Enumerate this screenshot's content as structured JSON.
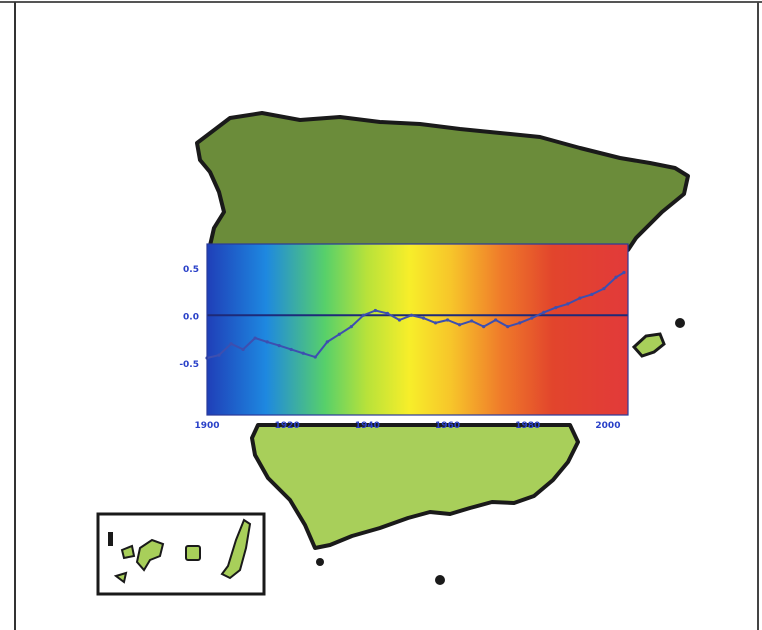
{
  "colors": {
    "north_region": "#6b8c3a",
    "south_region": "#a8cf5a",
    "outline": "#1a1a1a",
    "line_series": "#3d4fb0",
    "zero_line": "#1e2a78",
    "tick_label": "#2940c8",
    "band_warm": "#e23a2a",
    "band_cool": "#1f4fc8"
  },
  "icons": {
    "map": "spain-map-icon",
    "islands_inset": "canary-islands-inset-icon"
  },
  "chart_data": {
    "type": "line",
    "title": "",
    "xlabel": "",
    "ylabel": "",
    "xlim": [
      1900,
      2005
    ],
    "ylim": [
      -1.05,
      0.75
    ],
    "xticks": [
      {
        "value": 1900,
        "label": "1900"
      },
      {
        "value": 1920,
        "label": "1920"
      },
      {
        "value": 1940,
        "label": "1940"
      },
      {
        "value": 1960,
        "label": "1960"
      },
      {
        "value": 1980,
        "label": "1980"
      },
      {
        "value": 2000,
        "label": "2000"
      }
    ],
    "yticks": [
      {
        "value": 0.5,
        "label": "0.5"
      },
      {
        "value": 0.0,
        "label": "0.0"
      },
      {
        "value": -0.5,
        "label": "-0.5"
      }
    ],
    "zero_line": 0.0,
    "background": "horizontal color gradient from blue to red",
    "series": [
      {
        "x": [
          1900,
          1903,
          1906,
          1909,
          1912,
          1915,
          1918,
          1921,
          1924,
          1927,
          1930,
          1933,
          1936,
          1939,
          1942,
          1945,
          1948,
          1951,
          1954,
          1957,
          1960,
          1963,
          1966,
          1969,
          1972,
          1975,
          1978,
          1981,
          1984,
          1987,
          1990,
          1993,
          1996,
          1999,
          2002,
          2004
        ],
        "y": [
          -0.45,
          -0.42,
          -0.3,
          -0.36,
          -0.24,
          -0.28,
          -0.32,
          -0.36,
          -0.4,
          -0.44,
          -0.28,
          -0.2,
          -0.12,
          0.0,
          0.05,
          0.02,
          -0.05,
          0.0,
          -0.03,
          -0.08,
          -0.05,
          -0.1,
          -0.06,
          -0.12,
          -0.05,
          -0.12,
          -0.08,
          -0.03,
          0.03,
          0.08,
          0.12,
          0.18,
          0.22,
          0.28,
          0.4,
          0.45
        ]
      }
    ]
  }
}
